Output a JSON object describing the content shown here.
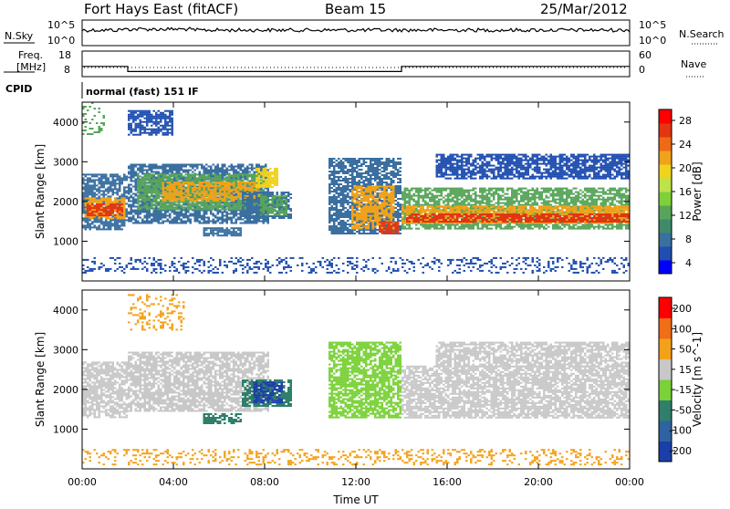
{
  "header": {
    "station": "Fort Hays East (fitACF)",
    "beam": "Beam 15",
    "date": "25/Mar/2012"
  },
  "strip_panels": {
    "sky": {
      "left_label": "N.Sky",
      "right_label": "N.Search",
      "left_ticks": [
        "10^5",
        "10^0"
      ],
      "right_ticks": [
        "10^5",
        "10^0"
      ]
    },
    "freq": {
      "left_label_1": "Freq.",
      "left_label_2": "[MHz]",
      "right_label": "Nave",
      "left_ticks": [
        "18",
        "8"
      ],
      "right_ticks": [
        "60",
        "0"
      ],
      "freq_steps": [
        {
          "x": 0,
          "value": 12
        },
        {
          "x": 2,
          "value": 12
        },
        {
          "x": 2,
          "value": 10
        },
        {
          "x": 14,
          "value": 10
        },
        {
          "x": 14,
          "value": 12
        },
        {
          "x": 24,
          "value": 12
        }
      ]
    },
    "cpid": {
      "label": "CPID",
      "text": "normal (fast) 151 IF"
    }
  },
  "chart_data": [
    {
      "type": "heatmap",
      "title": "",
      "ylabel": "Slant Range [km]",
      "ylim": [
        0,
        4500
      ],
      "xlim": [
        0,
        24
      ],
      "yticks": [
        "1000",
        "2000",
        "3000",
        "4000"
      ],
      "colorbar": {
        "label": "Power [dB]",
        "ticks": [
          "28",
          "24",
          "20",
          "16",
          "12",
          "8",
          "4"
        ],
        "colors": [
          "#0000ff",
          "#1f4eb0",
          "#3a6fa0",
          "#3f8a6a",
          "#58a55a",
          "#7fd03a",
          "#bde24a",
          "#f1d21d",
          "#f0a21a",
          "#ef6a18",
          "#e33512",
          "#ff0000"
        ]
      },
      "blobs": [
        {
          "x": [
            0.0,
            2.0
          ],
          "y": [
            1300,
            2700
          ],
          "c": "#3a6fa0"
        },
        {
          "x": [
            0.1,
            1.9
          ],
          "y": [
            1550,
            2100
          ],
          "c": "#f0a21a"
        },
        {
          "x": [
            0.2,
            1.8
          ],
          "y": [
            1650,
            1950
          ],
          "c": "#e33512"
        },
        {
          "x": [
            2.0,
            8.2
          ],
          "y": [
            1450,
            2950
          ],
          "c": "#3a6fa0"
        },
        {
          "x": [
            2.4,
            8.0
          ],
          "y": [
            1800,
            2700
          ],
          "c": "#58a55a"
        },
        {
          "x": [
            3.5,
            7.8
          ],
          "y": [
            2000,
            2500
          ],
          "c": "#f0a21a"
        },
        {
          "x": [
            7.6,
            8.6
          ],
          "y": [
            2350,
            2850
          ],
          "c": "#f1d21d"
        },
        {
          "x": [
            7.0,
            9.2
          ],
          "y": [
            1600,
            2250
          ],
          "c": "#3a6fa0"
        },
        {
          "x": [
            7.8,
            9.0
          ],
          "y": [
            1650,
            2150
          ],
          "c": "#58a55a"
        },
        {
          "x": [
            5.3,
            7.0
          ],
          "y": [
            1150,
            1350
          ],
          "c": "#3a6fa0"
        },
        {
          "x": [
            10.8,
            14.0
          ],
          "y": [
            1200,
            3100
          ],
          "c": "#3a6fa0"
        },
        {
          "x": [
            11.8,
            13.7
          ],
          "y": [
            1300,
            2400
          ],
          "c": "#f0a21a"
        },
        {
          "x": [
            13.0,
            13.8
          ],
          "y": [
            1200,
            1500
          ],
          "c": "#e33512"
        },
        {
          "x": [
            14.0,
            24.0
          ],
          "y": [
            1300,
            2350
          ],
          "c": "#58a55a"
        },
        {
          "x": [
            14.0,
            24.0
          ],
          "y": [
            1450,
            1900
          ],
          "c": "#f0a21a"
        },
        {
          "x": [
            14.2,
            24.0
          ],
          "y": [
            1480,
            1700
          ],
          "c": "#e33512"
        },
        {
          "x": [
            15.5,
            24.0
          ],
          "y": [
            2600,
            3200
          ],
          "c": "#1f4eb0"
        },
        {
          "x": [
            2.0,
            4.0
          ],
          "y": [
            3700,
            4300
          ],
          "c": "#1f4eb0"
        },
        {
          "x": [
            0.0,
            1.0
          ],
          "y": [
            3700,
            4500
          ],
          "c": "#58a55a"
        },
        {
          "x": [
            0.0,
            24.0
          ],
          "y": [
            200,
            600
          ],
          "c": "#1f4eb0"
        }
      ]
    },
    {
      "type": "heatmap",
      "title": "",
      "ylabel": "Slant Range [km]",
      "ylim": [
        0,
        4500
      ],
      "xlim": [
        0,
        24
      ],
      "yticks": [
        "1000",
        "2000",
        "3000",
        "4000"
      ],
      "xticks": [
        "00:00",
        "04:00",
        "08:00",
        "12:00",
        "16:00",
        "20:00",
        "00:00"
      ],
      "xlabel": "Time UT",
      "colorbar": {
        "label": "Velocity [m s^-1]",
        "ticks": [
          "200",
          "100",
          "50",
          "15",
          "-15",
          "-50",
          "-100",
          "-200"
        ],
        "colors": [
          "#1b3fa8",
          "#2f63a0",
          "#2f7f6a",
          "#7bd13a",
          "#c8c8c8",
          "#f4a11a",
          "#ef6e16",
          "#ff0000"
        ]
      },
      "blobs": [
        {
          "x": [
            0.0,
            2.0
          ],
          "y": [
            1300,
            2700
          ],
          "c": "#c8c8c8"
        },
        {
          "x": [
            2.0,
            8.2
          ],
          "y": [
            1450,
            2950
          ],
          "c": "#c8c8c8"
        },
        {
          "x": [
            7.0,
            9.2
          ],
          "y": [
            1600,
            2250
          ],
          "c": "#2f7f6a"
        },
        {
          "x": [
            7.5,
            8.8
          ],
          "y": [
            1650,
            2200
          ],
          "c": "#1b3fa8"
        },
        {
          "x": [
            5.3,
            7.0
          ],
          "y": [
            1150,
            1400
          ],
          "c": "#2f7f6a"
        },
        {
          "x": [
            10.8,
            14.0
          ],
          "y": [
            1300,
            3200
          ],
          "c": "#7bd13a"
        },
        {
          "x": [
            14.0,
            24.0
          ],
          "y": [
            1300,
            2600
          ],
          "c": "#c8c8c8"
        },
        {
          "x": [
            15.5,
            24.0
          ],
          "y": [
            2600,
            3200
          ],
          "c": "#c8c8c8"
        },
        {
          "x": [
            0.0,
            24.0
          ],
          "y": [
            100,
            500
          ],
          "c": "#f4a11a"
        },
        {
          "x": [
            2.0,
            4.5
          ],
          "y": [
            3500,
            4400
          ],
          "c": "#f4a11a"
        }
      ]
    }
  ]
}
